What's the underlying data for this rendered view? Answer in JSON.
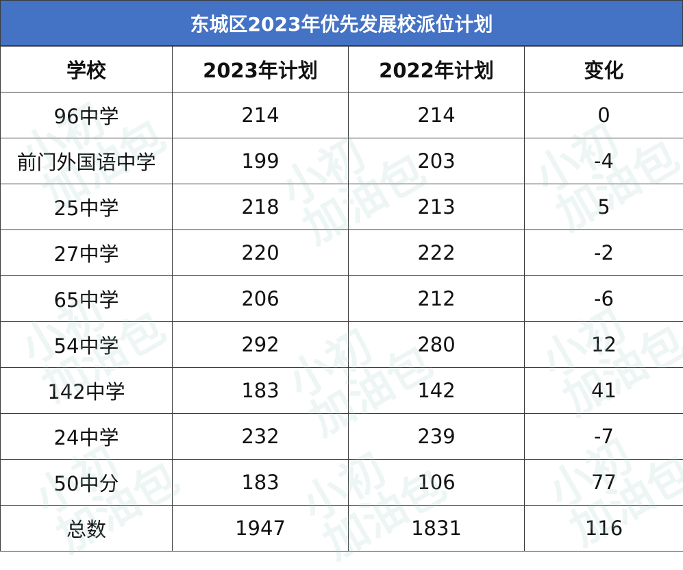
{
  "title": "东城区2023年优先发展校派位计划",
  "columns": [
    "学校",
    "2023年计划",
    "2022年计划",
    "变化"
  ],
  "rows": [
    [
      "96中学",
      "214",
      "214",
      "0"
    ],
    [
      "前门外国语中学",
      "199",
      "203",
      "-4"
    ],
    [
      "25中学",
      "218",
      "213",
      "5"
    ],
    [
      "27中学",
      "220",
      "222",
      "-2"
    ],
    [
      "65中学",
      "206",
      "212",
      "-6"
    ],
    [
      "54中学",
      "292",
      "280",
      "12"
    ],
    [
      "142中学",
      "183",
      "142",
      "41"
    ],
    [
      "24中学",
      "232",
      "239",
      "-7"
    ],
    [
      "50中分",
      "183",
      "106",
      "77"
    ],
    [
      "总数",
      "1947",
      "1831",
      "116"
    ]
  ],
  "watermark": {
    "line1": "小初",
    "line2": "加油包"
  },
  "colors": {
    "title_bg": "#4472c4",
    "title_text": "#ffffff",
    "grid": "#3a3a3a",
    "watermark": "#96c8be"
  }
}
